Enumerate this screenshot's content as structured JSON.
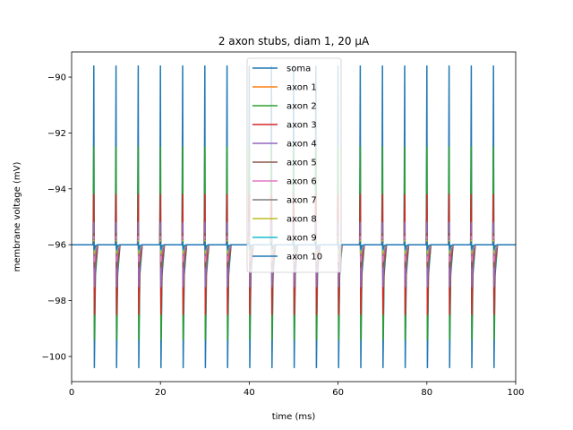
{
  "chart_data": {
    "type": "line",
    "title": "2 axon stubs, diam 1, 20 µA",
    "xlabel": "time (ms)",
    "ylabel": "membrane voltage (mV)",
    "xlim": [
      0,
      100
    ],
    "ylim": [
      -100.9,
      -89.1
    ],
    "xticks": [
      0,
      20,
      40,
      60,
      80,
      100
    ],
    "yticks": [
      -100,
      -98,
      -96,
      -94,
      -92,
      -90
    ],
    "grid": false,
    "legend_position": "top-center",
    "baseline_mV": -96.0,
    "spike_times_ms": [
      5,
      10,
      15,
      20,
      25,
      30,
      35,
      40,
      45,
      50,
      55,
      60,
      65,
      70,
      75,
      80,
      85,
      90,
      95
    ],
    "series": [
      {
        "name": "soma",
        "color": "#1f77b4",
        "spike_max": -89.6,
        "spike_min": -100.4
      },
      {
        "name": "axon 1",
        "color": "#ff7f0e",
        "spike_max": -95.6,
        "spike_min": -96.5
      },
      {
        "name": "axon 2",
        "color": "#2ca02c",
        "spike_max": -92.5,
        "spike_min": -99.4
      },
      {
        "name": "axon 3",
        "color": "#d62728",
        "spike_max": -94.2,
        "spike_min": -98.5
      },
      {
        "name": "axon 4",
        "color": "#9467bd",
        "spike_max": -95.2,
        "spike_min": -97.5
      },
      {
        "name": "axon 5",
        "color": "#8c564b",
        "spike_max": -95.6,
        "spike_min": -96.8
      },
      {
        "name": "axon 6",
        "color": "#e377c2",
        "spike_max": -95.7,
        "spike_min": -96.6
      },
      {
        "name": "axon 7",
        "color": "#7f7f7f",
        "spike_max": -95.8,
        "spike_min": -96.4
      },
      {
        "name": "axon 8",
        "color": "#bcbd22",
        "spike_max": -95.85,
        "spike_min": -96.3
      },
      {
        "name": "axon 9",
        "color": "#17becf",
        "spike_max": -95.9,
        "spike_min": -96.2
      },
      {
        "name": "axon 10",
        "color": "#1f77b4",
        "spike_max": -95.9,
        "spike_min": -96.15
      }
    ]
  }
}
